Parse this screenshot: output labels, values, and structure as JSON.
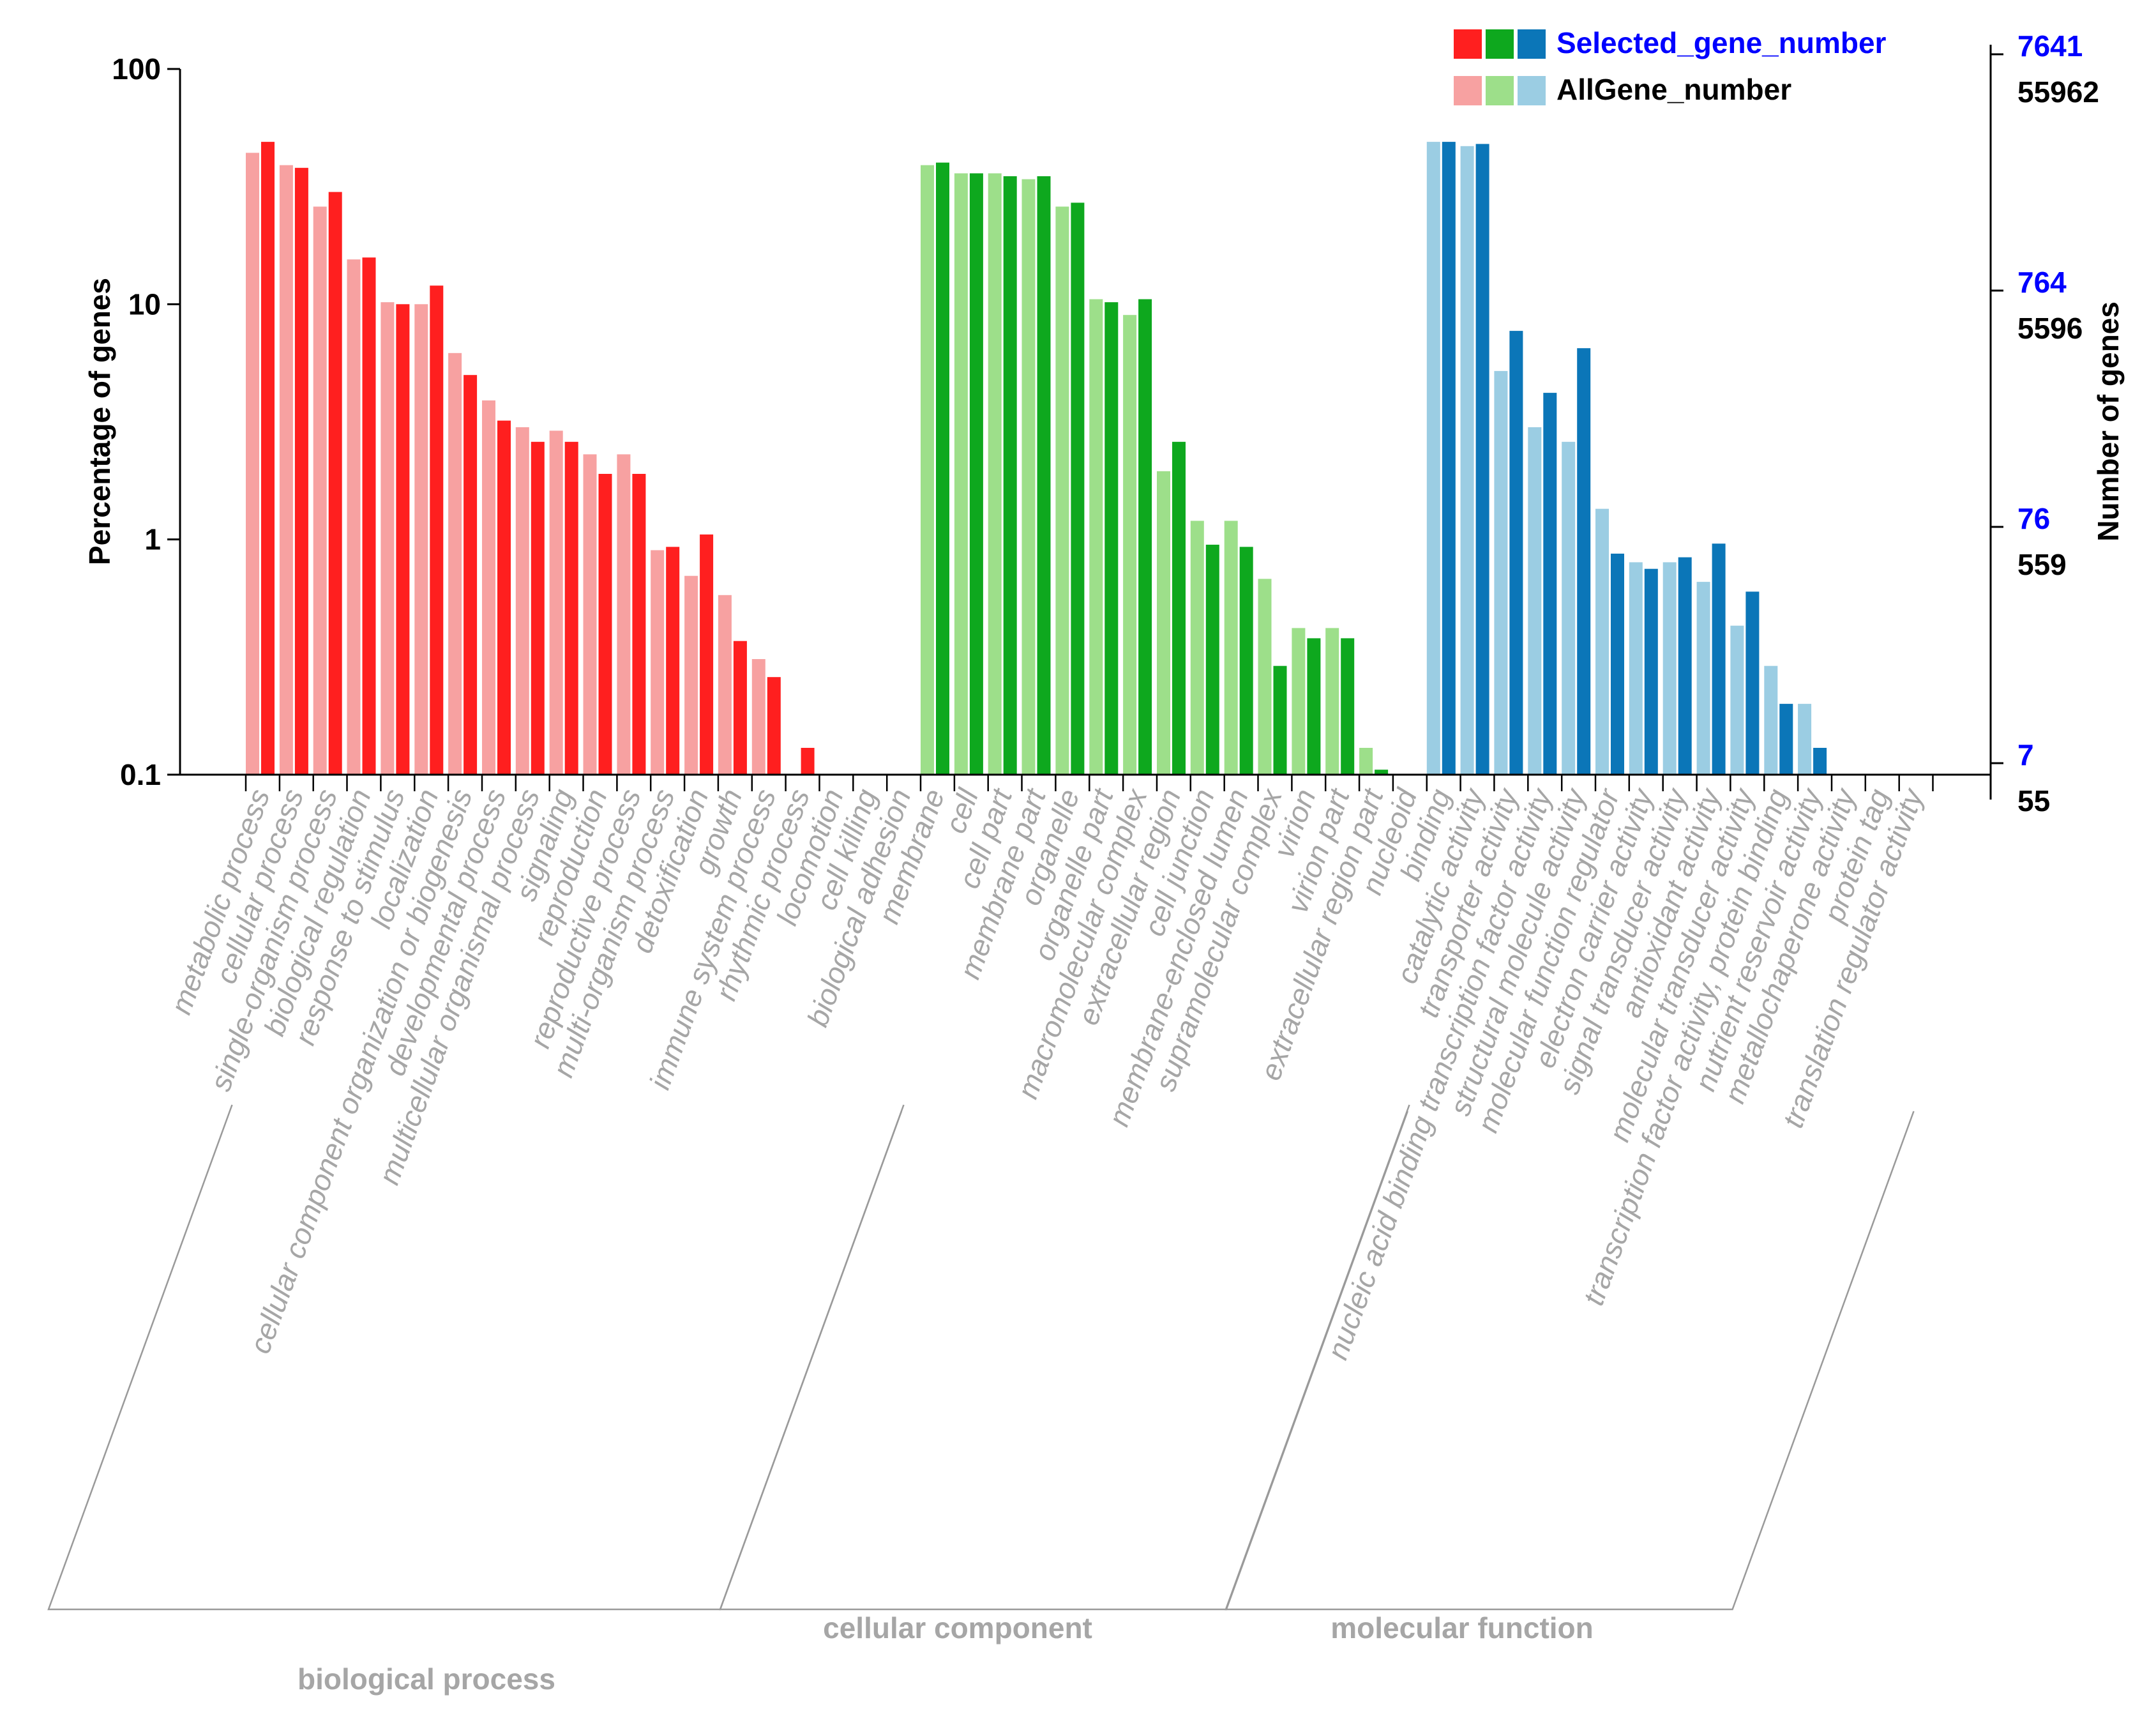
{
  "chart_data": {
    "type": "bar",
    "title": "",
    "ylabel": "Percentage of genes",
    "y2label": "Number of genes",
    "yscale": "log",
    "ylim": [
      0.1,
      100
    ],
    "yticks": [
      "100",
      "10",
      "1",
      "0.1"
    ],
    "right_ticks": [
      {
        "selected": "7641",
        "all": "55962"
      },
      {
        "selected": "764",
        "all": "5596"
      },
      {
        "selected": "76",
        "all": "559"
      },
      {
        "selected": "7",
        "all": "55"
      }
    ],
    "legend": {
      "selected_label": "Selected_gene_number",
      "all_label": "AllGene_number",
      "selected_color": "#0000ff",
      "all_color": "#000000"
    },
    "groups": [
      {
        "name": "biological process",
        "color_all": "#f7a1a1",
        "color_selected": "#ff1f1f",
        "categories": [
          "metabolic process",
          "cellular process",
          "single-organism process",
          "biological regulation",
          "response to stimulus",
          "localization",
          "cellular component organization or biogenesis",
          "developmental process",
          "multicellular organismal process",
          "signaling",
          "reproduction",
          "reproductive process",
          "multi-organism process",
          "detoxification",
          "growth",
          "immune system process",
          "rhythmic process",
          "locomotion",
          "cell killing",
          "biological adhesion"
        ],
        "series": [
          {
            "name": "AllGene_number",
            "values": [
              44,
              39,
              26,
              15.5,
              10.2,
              10,
              6.2,
              3.9,
              3.0,
              2.9,
              2.3,
              2.3,
              0.9,
              0.7,
              0.58,
              0.31,
              0.1,
              0.1,
              0.1,
              0.1
            ]
          },
          {
            "name": "Selected_gene_number",
            "values": [
              49,
              38,
              30,
              15.8,
              10,
              12,
              5,
              3.2,
              2.6,
              2.6,
              1.9,
              1.9,
              0.93,
              1.05,
              0.37,
              0.26,
              0.13,
              0.1,
              0.1,
              0.1
            ]
          }
        ]
      },
      {
        "name": "cellular component",
        "color_all": "#9ddf8a",
        "color_selected": "#0ea81e",
        "categories": [
          "membrane",
          "cell",
          "cell part",
          "membrane part",
          "organelle",
          "organelle part",
          "macromolecular complex",
          "extracellular region",
          "cell junction",
          "membrane-enclosed lumen",
          "supramolecular complex",
          "virion",
          "virion part",
          "extracellular region part",
          "nucleoid"
        ],
        "series": [
          {
            "name": "AllGene_number",
            "values": [
              39,
              36,
              36,
              34,
              26,
              10.5,
              9,
              1.95,
              1.2,
              1.2,
              0.68,
              0.42,
              0.42,
              0.13,
              0.1
            ]
          },
          {
            "name": "Selected_gene_number",
            "values": [
              40,
              36,
              35,
              35,
              27,
              10.2,
              10.5,
              2.6,
              0.95,
              0.93,
              0.29,
              0.38,
              0.38,
              0.105,
              0.1
            ]
          }
        ]
      },
      {
        "name": "molecular function",
        "color_all": "#9bcde3",
        "color_selected": "#0b76b8",
        "categories": [
          "binding",
          "catalytic activity",
          "transporter activity",
          "nucleic acid binding transcription factor activity",
          "structural molecule activity",
          "molecular function regulator",
          "electron carrier activity",
          "signal transducer activity",
          "antioxidant activity",
          "molecular transducer activity",
          "transcription factor activity, protein binding",
          "nutrient reservoir activity",
          "metallochaperone activity",
          "protein tag",
          "translation regulator activity"
        ],
        "series": [
          {
            "name": "AllGene_number",
            "values": [
              49,
              47,
              5.2,
              3.0,
              2.6,
              1.35,
              0.8,
              0.8,
              0.66,
              0.43,
              0.29,
              0.2,
              0.1,
              0.1,
              0.1
            ]
          },
          {
            "name": "Selected_gene_number",
            "values": [
              49,
              48,
              7.7,
              4.2,
              6.5,
              0.87,
              0.75,
              0.84,
              0.96,
              0.6,
              0.2,
              0.13,
              0.1,
              0.1,
              0.1
            ]
          }
        ]
      }
    ]
  }
}
